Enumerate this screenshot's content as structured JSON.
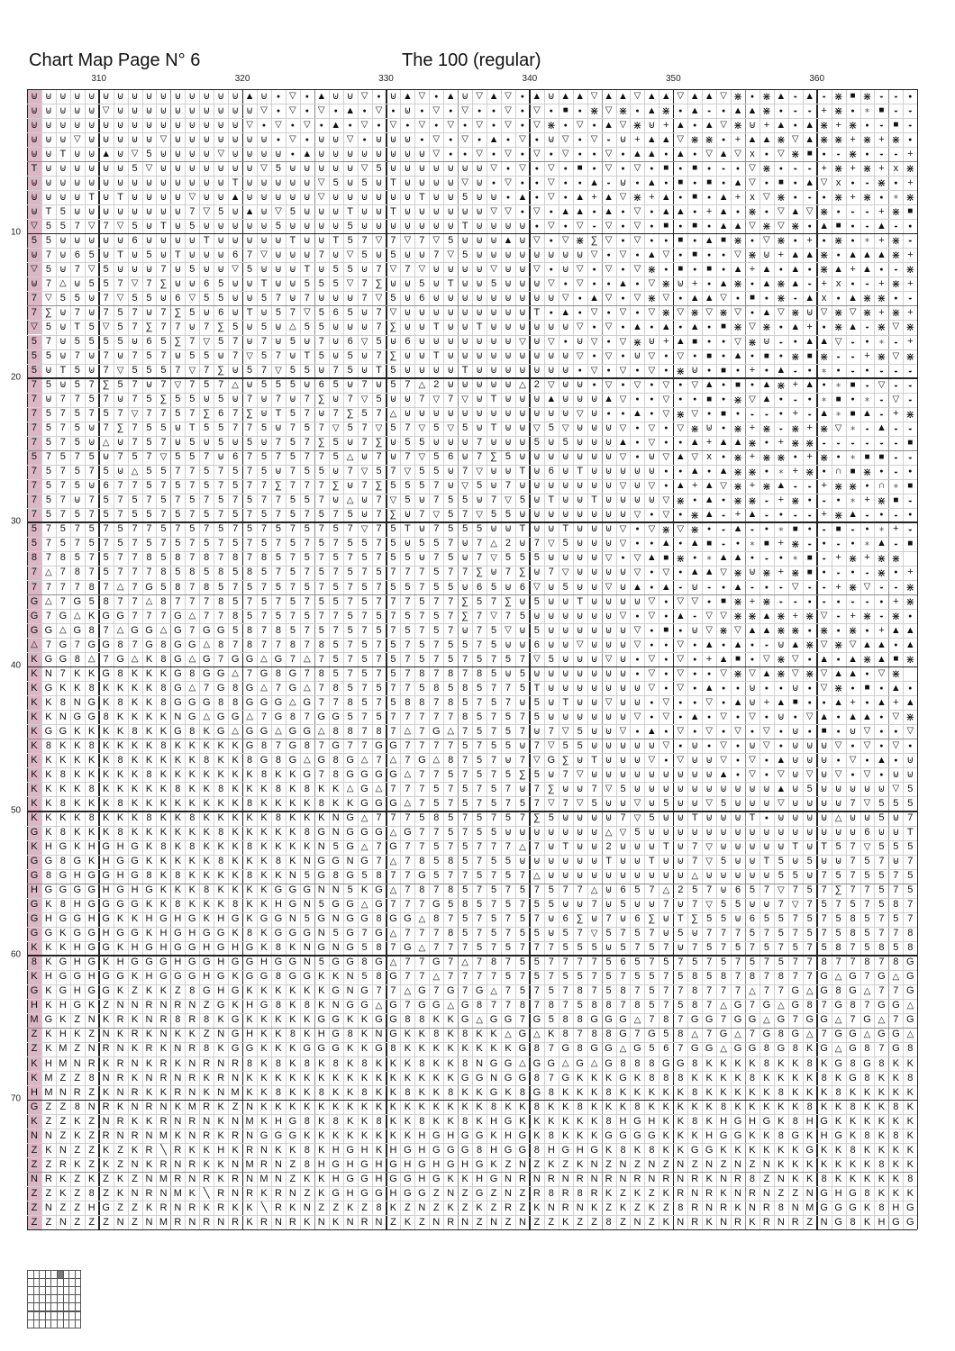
{
  "header": {
    "title": "Chart Map Page N° 6",
    "pattern_name": "The 100 (regular)"
  },
  "column_labels": [
    "310",
    "320",
    "330",
    "340",
    "350",
    "360"
  ],
  "row_labels": [
    "10",
    "20",
    "30",
    "40",
    "50",
    "60",
    "70"
  ],
  "colors": {
    "highlight_column": "#dbb6c4",
    "grid_line": "#cfcfcf",
    "grid_line_minor": "#8c8c8c",
    "grid_line_major": "#222222",
    "thumbnail_active": "#777777"
  },
  "symbols": {
    "u": "⊍",
    "v": "▽",
    "o": "●",
    "A": "▲",
    "S": "■",
    "X": "⋇",
    "x": "x",
    "h": "◒",
    "*": "∗",
    "E": "∑",
    "t": "△",
    "n": "∩",
    "d": "╲",
    "+": "+"
  },
  "grid_rows": [
    "uuuuuuuuuuuuuuuAuovoAuuvouAvoAuvAvoAuAAvAAvAAvAAvXoXAhAhXSXhho",
    "uuuuuvuuuuuuuuuuvovovoAovouovovoovovoSoXvXoAXoAhoAAXohh+Xo*Shh",
    "uuuuuuuuuuuuuuuvovovoAovovovovovovovXovoAvXu+AoAvXu+AoAX+XohSh",
    "uuuvuuuuuvuuuuuuuovouuvouuuovovoAovouvovhu+AAvXXo+AAXvAXX+X+Xo",
    "uuTuuAuv5uuuuvuuuuoAuuuuuuuuvoovovovovoovoAAoAovAvxovXSohXohh+",
    "Tuuuuuu5vuuuuuuuv5uuuuuv5uuuuuuuvovovoSovovoSoSohovXohh+X+X+xX",
    "uuuuuuuuuuuuuuTuuuuuv5u5uTuuuuvuovoovooAhuoAoSoSoAvoSoAvxohXo+",
    "uuuuTuTuuuuvuuAuuuuuvuuuuuuTuu5uuoAovoA+AvX+AoSoA+xvXohoX+Xo*X",
    "uT5uuuuuuuu7v5uAuv5uuuTuuTuuuuuuvvovoAAoAovoAAo+AoXovAvXohh+XS",
    "v557v7v5uTu5uuuuu5uuuu5uuuuuuuTuuuuovovhvovoSoSoAAvXvXoASohAho",
    "55uuuuu6uuuuTuuuuuTuuT57v7v7v5uuuAuvovXEvovooSoASXovXo+oXo*+Xh",
    "u7u65uTu5uTuuu67vuuu7uv5u5uu7v5uuuuuuuuvovoAvoSoovXu+AAXoAAAX+",
    "v5u7v5uuu7u5uuv5uuuTu55u7v7vuuuuvuuvouvovovXoSoSoA+AoAoXA+AohX",
    "u7tu557v7Euu65uuTuu555v7Euu5uTuu5uuuvovooAovXu+oAXoAXAh+xoh+X+",
    "7v55u7v55u6v55uu57u7uuu7v5u6uuuuuuuuuvoAvovXvoAAvoSoXhAxoAXXoh",
    "7Eu7u757u7E5u6uTu57v565u7vuuuuuuuuuToAovovovXvXvXvoAvXuvXvX+X+",
    "v5uT5v57E77u7E5u5ut55uuu7EuuTuuTuuuuuuvovoAoAoAoSXvXoA+oXAhXvX",
    "57u5555u65E7v57u7u5u7u6v5u6uuuuuuuvuvouvovXu+ASoovXuhoAAvho*h+",
    "55u7u7u757u55u7v57uT5u5u7EuuTuuuuuuuuuvovouvovoSoAoSoXSXhh+XvX",
    "5uT5u7v5557v7Eu57v55u75uT5uuuuTuuuuuuuovovovoXuoSo+oAho*ohohhh",
    "75u57E57u7v757tu555u65u7u57t2uuuuut2vuuovovovovAoSoAX+Ao*Shvhh",
    "7u7757u75E55u5u7u7u7Eu7v5uu7v7vuTuuuAuuuAvoovooSoXvAoho*So*hvh",
    "7575757v7757E67EuT57u7E57tuuuuuuuuuuuuvuooAovXvoSohho+hA*SAh+X",
    "7575u7E755uT55775u757v57v57v5v5uTuuv5vuuuvovovXuoX+XhX+Xv*hAhh",
    "7575utu757u5u5u5u757E5u7Eu55uuu7uuu5u5uuuAovooA+AAXo+XXhhhhhhS",
    "57575u757v557u67575775tu7u7v56u7E5uuuuuuuvouvAvxoX+XXo+Xo*SShh",
    "757575ut557757575u755u7v57v55u7vuuTu6uTuuuuuooAoAXXo*+XonSXoho",
    "7575u677575757577E777Eu7E5557uv5u7uuuuuuuvuvoA+AvX+XAhh+XXon*S",
    "757u75757575757577557utu7v5u755u7v5uTuuTuuuuvXoAoXXh+Xoho*+XSh",
    "75757575575757575757575u7Eu7v57v55uuuuuuuuvovoXAh+Ahohh+XAhoho",
    "57575757757575757575757v75Tu7555uuTuuTuuuvovXvXohAho*SohSho*+h",
    "57575757575757575757575575u557u7t2u7v5uuuvooAoASho*S+Xhoho*AhS",
    "878575778587878785757575755u75u7v555uuuuvovASXo*AAoho*Sh+X+XX",
    "7t78757778585858575757575777577Eu7Eu7vuuuuvovoAAvXuX+XSohohXo+",
    "777787t7G587857575757575755755u65u6vu5uuvuAoAhuhoAhohvhh+XvhhX",
    "Gt7G5877t877785757575575777577E57Eu5uuTuuuuvovvoSX+Xhhohohho+X",
    "G7GtKGG777Gt778575757757575757E7v75uuuuuuvovoAhvvXXAX+Xvh+XhXo",
    "GGtG87tGGtG7GG5878575757575757u75vu5uuuuuuvoSouvXvAAXXoXoXo+AA",
    "t7G7GG87G8GGt87877878575757575575uu6uuvuuuvoovoAoAohuAXvXvAAoA",
    "KGG8t7GtK8GtG7GGtG7t757575757575757v5uuuvuovovo+ASovXvoAoAXASX",
    "KN7KKG8KKKG8GGt7G8G78575757878785u5uuuuuuuovovoovXvAXvXvAAovX",
    "KGKK8KKKK8Gt7G8Gt7Gt785757758585775TuuuuuuuvovoAoouoouovXoSoAo",
    "KK8NGK8KK8GGG88GGGtG77857588785757u5uTuuvuuovoovoAu+ASooA+oA+A",
    "KKNGG8KKKKNGtGGt7G87GG57577777857575uuuuuuvovoAovovouovAoAAovX",
    "KGGKKKK8KKG8KGtGGtGGt88787t7Gt75757u7v5uuvoAovovovovouoSouvoov",
    "K8KK8KKKK8KKKKKG87G87G77GG77775755u7v55uuuuuvouovouvouuuvovovo",
    "KKKKKK8KKKKK8KK8G8GtG8Gt7t7Gt8757u7vGEuTuuuvovuuvovoAuuuovoAou",
    "KK8KKKKK8KKKKKKK8KKG78GGGGt7757575E5u7vuuuuuuuuuAovovuvuvovouu",
    "KKKK8KKKKK8KK8KKK8K8KKtGt777575757u7Euu7v5uuuuuuuuuuAu5uuuuuv5",
    "KK8KKK8KKKKKKKK8KKKK8KKGGGt757575757v7v5uuvu5uuv5uuuvuuuu7v555",
    "KKKK8KKK8KK8KKKKK8KKKNGt77758575757E5uuuu7v5uuTuuuTouuuutuu5u7",
    "GK8KKK8KKKKKK8KKKKK8GNGGGtG775755uuuuuuutv5uuuuuuuuuuuuuuu6uuT",
    "KHGKHGHGK8K8KKK8KKKKN5Gt7G77575777t7uTuu2uuuTu7vuuuuuTuT57v555",
    "GG8GKHGGKKKKK8KKK8KNGGNG7t78585755uuuuuuTuuTuu7v5uuT5u5uu757u7",
    "G8GHGGHG8K8KKKK8KKN5G8G5877G5775757tuuuuuuuuuutuuuuu55u7575575",
    "HGGGGHGHGKKK8KKKKGGGNN5KGt7878575757577tu657t257u657v757E77575",
    "GK8HGGGGKK8KKK8KKHGN5GGtG777G58575755uu7u5uu7u7v55uu7v75757587",
    "GHGGHGKKHGHGKHGKGGN5GNGG8GGt87575757u6Eu7u6EuTE55u655757585757",
    "GGKGGHGGKHGHGGK8KGGGN5G7Gt7778575755u57v5757u5u777575757585778",
    "KKKHGGKHGHGGHGHGK8KNGNG587Gt777575777555u5757u7575757575875858",
    "8KGHGKHGGGHGGHGGHGGN5GG8Gt77G7t78755777756575757575757787787 8G",
    "KHGGHGGKHGGGHGKGG8GGKKN58G77t77775757557575575858787877GtG7GtG",
    "GKGHGGKZKKZ8GHGKKKKKKGNG77tG7G7Gt75757875875778777t77GtG8Gt77G",
    "HKHGKZNNRNRNZGKHG8K8KNGGtG7GGtG87787875887857587tG7GtG87G87GGt",
    "MGKZNKRKNR8R8KGKKKKKGGKKGG88KKGtGG7G588GGGt787GG7GGtG7GGt7Gt7G",
    "ZKHKZNKRKNKKZNGHKK8KHG8KNGKK8K8KKtGtK8788G7G58t7Gt7G8Gt7GGtGGt",
    "ZKMZNRNKRKNR8KGGKKKGGGKKG8KKKKKKKKG87G8GGtG567GGtGG8G8KGtG87G8",
    "KHMNRKRNKRKNRNR8K8K8K8K8KKK8KK8NGGtGGtGtG888GG8KKKK8KK8KG8G8KK",
    "KMZZ8NRKNRNRKRNKKKKKKKKKKKKKKKGGNGG87GKKKGK888KKKK8KKKK8KG8KK8",
    "HMNRZKNRKKRNKNMKK8KK8KK8KK8KK8KKGK8G8KKK8KKKKK8KKKKK8KKK8KKKKK",
    "GZZ8NRKNRNKMRKZNKKKKKKKKKKKKKKKK8KK8KK8KKK8KKKKK8KKKKK8KK8KK8K",
    "KZZKZNRKKRNRNKNMKHG8K8KK8KK8KK8KHGKKKKKK8HGHKK8KHGHGK8HGKKKKKK",
    "NNZKZRNRNMKNRKRNGGGKKKKKKKKHGHGGKHGK8KKKGGGGKKKHGGKK8GKHGK8K8K",
    "ZKNZZKZKRdRKKHKRNKK8KHGHKHGHGGG8HGG8HGHGK8K8KKGGKKKKKKGKK8KKKK",
    "ZZRKZKZNKRNRKKNMRNZ8HGHGHGHGHGHGKZNZKZKNZNZNZNZNZNZNKKKKKKK8KK",
    "NRKZKZKZNMRNRKRNMNZKKHGGHGGHGKKHGNRNRNRNRNRNRNRKNR8ZNKK8KKKKK8",
    "ZZKZ8ZKNRNMKdRNRKRNZKGHGGHGGZNZGZNZR8R8RKZKZKRNRKNRNZZNGHG8KKK",
    "ZNZZHGZZKRNRKRKKdRKNZZKZ8KZNZKZKZRZKNRNKZKZKZ8RNRKNR8NMGGGK8HG",
    "ZZNZZZNZNMRNRNRKRNRKNKNRNZKZNRNZNZNZZKZZ8ZNZKNRKNRKRNRZNG8KHGG"
  ],
  "thumbnail": {
    "columns": 9,
    "rows": 7,
    "active_column": 6,
    "active_row": 1
  }
}
